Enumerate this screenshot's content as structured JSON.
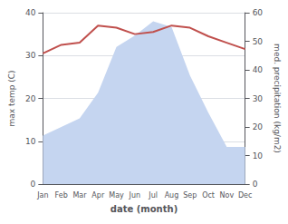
{
  "chart_data": {
    "type": "line",
    "xlabel": "date (month)",
    "ylabel": "max temp (C)",
    "y2label": "med. precipitation (kg/m2)",
    "categories": [
      "Jan",
      "Feb",
      "Mar",
      "Apr",
      "May",
      "Jun",
      "Jul",
      "Aug",
      "Sep",
      "Oct",
      "Nov",
      "Dec"
    ],
    "series": [
      {
        "type": "line",
        "color": "#c0504d",
        "values": [
          30.5,
          32.5,
          33.0,
          37.0,
          36.5,
          35.0,
          35.5,
          37.0,
          36.5,
          34.5,
          33.0,
          31.5
        ]
      },
      {
        "type": "area",
        "axis": "y2",
        "color": "#c5d5f0",
        "values": [
          17,
          20,
          23,
          32,
          48,
          52,
          57,
          55,
          38,
          25,
          13,
          13
        ]
      }
    ],
    "ylim": [
      0,
      40
    ],
    "yticks": [
      0,
      10,
      20,
      30,
      40
    ],
    "y2lim": [
      0,
      60
    ],
    "y2ticks": [
      0,
      10,
      20,
      30,
      40,
      50,
      60
    ],
    "grid": true
  }
}
